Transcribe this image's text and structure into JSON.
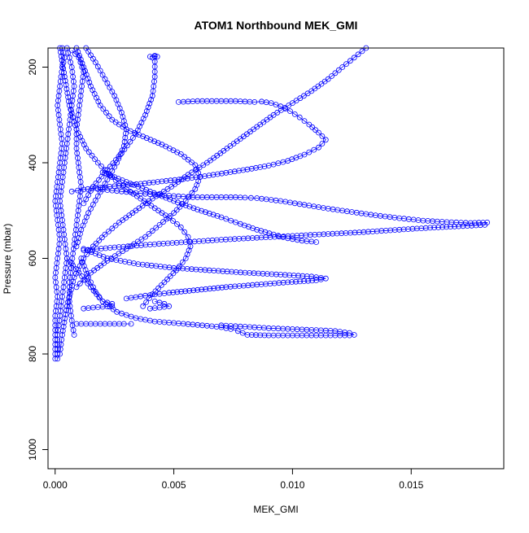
{
  "chart_data": {
    "type": "scatter",
    "title": "ATOM1 Northbound MEK_GMI",
    "xlabel": "MEK_GMI",
    "ylabel": "Pressure (mbar)",
    "xlim": [
      -0.0003,
      0.0189
    ],
    "ylim": [
      1040,
      160
    ],
    "y_reversed": true,
    "x_ticks": [
      0.0,
      0.005,
      0.01,
      0.015
    ],
    "x_tick_labels": [
      "0.000",
      "0.005",
      "0.010",
      "0.015"
    ],
    "y_ticks": [
      200,
      400,
      600,
      800,
      1000
    ],
    "y_tick_labels": [
      "200",
      "400",
      "600",
      "800",
      "1000"
    ],
    "grid": false,
    "legend": "none",
    "marker": "open-circle",
    "connect_points": true,
    "color": "#0000ff",
    "series": [
      {
        "points": [
          [
            0.0131,
            160
          ],
          [
            0.0126,
            180
          ],
          [
            0.0121,
            200
          ],
          [
            0.0115,
            225
          ],
          [
            0.0108,
            250
          ],
          [
            0.01,
            275
          ],
          [
            0.0092,
            300
          ],
          [
            0.0085,
            325
          ],
          [
            0.0078,
            350
          ],
          [
            0.0071,
            375
          ],
          [
            0.0064,
            400
          ],
          [
            0.0056,
            425
          ],
          [
            0.0049,
            450
          ],
          [
            0.0041,
            475
          ],
          [
            0.0034,
            500
          ],
          [
            0.0027,
            525
          ],
          [
            0.0021,
            550
          ],
          [
            0.0016,
            575
          ],
          [
            0.0012,
            600
          ],
          [
            0.0008,
            640
          ],
          [
            0.0005,
            700
          ],
          [
            0.0003,
            760
          ],
          [
            0.0002,
            800
          ],
          [
            0.0001,
            810
          ]
        ]
      },
      {
        "points": [
          [
            0.0002,
            160
          ],
          [
            0.0004,
            220
          ],
          [
            0.0006,
            280
          ],
          [
            0.0009,
            330
          ],
          [
            0.0013,
            370
          ],
          [
            0.0018,
            400
          ],
          [
            0.0024,
            430
          ],
          [
            0.003,
            455
          ],
          [
            0.0036,
            475
          ],
          [
            0.0042,
            495
          ],
          [
            0.0048,
            515
          ],
          [
            0.0053,
            535
          ],
          [
            0.0056,
            555
          ],
          [
            0.0057,
            575
          ],
          [
            0.0055,
            600
          ],
          [
            0.0051,
            625
          ],
          [
            0.0046,
            650
          ],
          [
            0.0041,
            675
          ],
          [
            0.0037,
            700
          ]
        ]
      },
      {
        "points": [
          [
            0.0052,
            273
          ],
          [
            0.0056,
            272
          ],
          [
            0.006,
            271
          ],
          [
            0.0064,
            271
          ],
          [
            0.0068,
            271
          ],
          [
            0.0072,
            271
          ],
          [
            0.0076,
            271
          ],
          [
            0.008,
            272
          ],
          [
            0.0084,
            273
          ],
          [
            0.0087,
            272
          ],
          [
            0.0091,
            275
          ],
          [
            0.0095,
            282
          ],
          [
            0.0099,
            292
          ],
          [
            0.0103,
            305
          ],
          [
            0.0107,
            320
          ],
          [
            0.0111,
            337
          ],
          [
            0.0114,
            352
          ],
          [
            0.0111,
            368
          ],
          [
            0.0105,
            383
          ],
          [
            0.0098,
            396
          ],
          [
            0.009,
            406
          ],
          [
            0.0081,
            414
          ],
          [
            0.0072,
            421
          ],
          [
            0.0063,
            428
          ],
          [
            0.0054,
            434
          ],
          [
            0.0045,
            439
          ],
          [
            0.0036,
            444
          ],
          [
            0.0027,
            448
          ],
          [
            0.0019,
            452
          ],
          [
            0.0012,
            456
          ],
          [
            0.0007,
            460
          ]
        ]
      },
      {
        "points": [
          [
            0.0013,
            158
          ],
          [
            0.0017,
            190
          ],
          [
            0.0021,
            225
          ],
          [
            0.0025,
            260
          ],
          [
            0.0028,
            295
          ],
          [
            0.003,
            330
          ],
          [
            0.0029,
            365
          ],
          [
            0.0026,
            400
          ],
          [
            0.0022,
            435
          ],
          [
            0.0018,
            470
          ],
          [
            0.0014,
            505
          ],
          [
            0.0011,
            540
          ],
          [
            0.0009,
            575
          ]
        ]
      },
      {
        "points": [
          [
            0.0018,
            455
          ],
          [
            0.0028,
            460
          ],
          [
            0.0038,
            465
          ],
          [
            0.0048,
            469
          ],
          [
            0.0058,
            472
          ],
          [
            0.0064,
            472
          ],
          [
            0.0068,
            472
          ],
          [
            0.0072,
            472
          ],
          [
            0.0076,
            472
          ],
          [
            0.008,
            473
          ],
          [
            0.0085,
            474
          ],
          [
            0.0095,
            480
          ],
          [
            0.0105,
            488
          ],
          [
            0.0115,
            496
          ],
          [
            0.0125,
            503
          ],
          [
            0.0135,
            510
          ],
          [
            0.0145,
            516
          ],
          [
            0.0155,
            521
          ],
          [
            0.0165,
            524
          ],
          [
            0.0175,
            526
          ],
          [
            0.0182,
            525
          ],
          [
            0.0181,
            530
          ],
          [
            0.017,
            533
          ],
          [
            0.0158,
            536
          ],
          [
            0.0145,
            540
          ],
          [
            0.013,
            545
          ],
          [
            0.0115,
            549
          ],
          [
            0.01,
            553
          ],
          [
            0.0085,
            557
          ],
          [
            0.007,
            561
          ],
          [
            0.0055,
            566
          ],
          [
            0.004,
            571
          ],
          [
            0.0025,
            577
          ],
          [
            0.0012,
            583
          ]
        ]
      },
      {
        "points": [
          [
            0.002,
            420
          ],
          [
            0.003,
            440
          ],
          [
            0.004,
            460
          ],
          [
            0.005,
            480
          ],
          [
            0.006,
            498
          ],
          [
            0.007,
            514
          ],
          [
            0.0078,
            528
          ],
          [
            0.0085,
            540
          ],
          [
            0.0092,
            550
          ],
          [
            0.0098,
            558
          ],
          [
            0.0104,
            563
          ],
          [
            0.0108,
            565
          ],
          [
            0.011,
            566
          ]
        ]
      },
      {
        "points": [
          [
            0.0012,
            580
          ],
          [
            0.0022,
            600
          ],
          [
            0.0035,
            612
          ],
          [
            0.005,
            620
          ],
          [
            0.0065,
            625
          ],
          [
            0.008,
            630
          ],
          [
            0.0095,
            634
          ],
          [
            0.0108,
            638
          ],
          [
            0.0114,
            642
          ],
          [
            0.011,
            646
          ],
          [
            0.0098,
            650
          ],
          [
            0.0085,
            655
          ],
          [
            0.0072,
            660
          ],
          [
            0.006,
            666
          ],
          [
            0.0048,
            672
          ],
          [
            0.0038,
            678
          ],
          [
            0.003,
            684
          ]
        ]
      },
      {
        "points": [
          [
            0.0005,
            600
          ],
          [
            0.001,
            630
          ],
          [
            0.0015,
            660
          ],
          [
            0.002,
            690
          ],
          [
            0.0026,
            712
          ],
          [
            0.0034,
            725
          ],
          [
            0.0042,
            732
          ],
          [
            0.0052,
            736
          ],
          [
            0.0062,
            740
          ],
          [
            0.007,
            744
          ],
          [
            0.0074,
            748
          ],
          [
            0.0077,
            752
          ],
          [
            0.0079,
            756
          ],
          [
            0.0081,
            760
          ],
          [
            0.009,
            761
          ],
          [
            0.01,
            761
          ],
          [
            0.011,
            761
          ],
          [
            0.0118,
            761
          ],
          [
            0.0124,
            761
          ],
          [
            0.0126,
            760
          ],
          [
            0.0124,
            756
          ],
          [
            0.0118,
            752
          ],
          [
            0.011,
            750
          ],
          [
            0.01,
            748
          ],
          [
            0.009,
            746
          ],
          [
            0.008,
            743
          ],
          [
            0.007,
            740
          ]
        ]
      },
      {
        "points": [
          [
            0.0009,
            737
          ],
          [
            0.0013,
            737
          ],
          [
            0.0017,
            737
          ],
          [
            0.0021,
            737
          ],
          [
            0.0025,
            737
          ],
          [
            0.0029,
            737
          ],
          [
            0.0032,
            737
          ]
        ]
      },
      {
        "points": [
          [
            0.0011,
            600
          ],
          [
            0.0014,
            640
          ],
          [
            0.0017,
            670
          ],
          [
            0.002,
            690
          ],
          [
            0.0024,
            695
          ],
          [
            0.0024,
            700
          ],
          [
            0.0018,
            702
          ],
          [
            0.0012,
            705
          ]
        ]
      },
      {
        "points": [
          [
            0.0042,
            178
          ],
          [
            0.0042,
            220
          ],
          [
            0.0041,
            260
          ],
          [
            0.0038,
            300
          ],
          [
            0.0034,
            340
          ],
          [
            0.0028,
            380
          ],
          [
            0.0022,
            415
          ],
          [
            0.0016,
            450
          ],
          [
            0.0012,
            485
          ]
        ]
      },
      {
        "points": [
          [
            0.004,
            178
          ],
          [
            0.0043,
            178
          ],
          [
            0.0042,
            176
          ],
          [
            0.0041,
            180
          ]
        ]
      },
      {
        "points": [
          [
            0.0042,
            690
          ],
          [
            0.0046,
            695
          ],
          [
            0.0048,
            700
          ],
          [
            0.0044,
            703
          ],
          [
            0.004,
            705
          ]
        ]
      },
      {
        "points": [
          [
            0.0009,
            160
          ],
          [
            0.0012,
            200
          ],
          [
            0.0015,
            240
          ],
          [
            0.0019,
            280
          ],
          [
            0.0024,
            310
          ],
          [
            0.003,
            330
          ],
          [
            0.0037,
            345
          ],
          [
            0.0045,
            362
          ],
          [
            0.0053,
            382
          ],
          [
            0.0059,
            405
          ],
          [
            0.0061,
            430
          ],
          [
            0.0059,
            455
          ],
          [
            0.0055,
            480
          ],
          [
            0.005,
            505
          ],
          [
            0.0044,
            530
          ],
          [
            0.0038,
            555
          ],
          [
            0.003,
            580
          ],
          [
            0.0022,
            605
          ],
          [
            0.0015,
            630
          ],
          [
            0.0009,
            660
          ]
        ]
      },
      {
        "points": [
          [
            0.0005,
            160
          ],
          [
            0.0007,
            200
          ],
          [
            0.0008,
            240
          ],
          [
            0.0007,
            280
          ],
          [
            0.0006,
            320
          ],
          [
            0.0005,
            360
          ],
          [
            0.0004,
            400
          ],
          [
            0.0003,
            440
          ],
          [
            0.0002,
            480
          ],
          [
            0.0003,
            520
          ],
          [
            0.0004,
            560
          ],
          [
            0.0005,
            600
          ],
          [
            0.0004,
            640
          ],
          [
            0.0003,
            680
          ],
          [
            0.0002,
            720
          ],
          [
            0.0001,
            760
          ],
          [
            0.0001,
            800
          ]
        ]
      },
      {
        "points": [
          [
            0.0003,
            160
          ],
          [
            0.0004,
            180
          ],
          [
            0.0003,
            200
          ],
          [
            0.0002,
            240
          ],
          [
            0.0001,
            280
          ],
          [
            0.0002,
            320
          ],
          [
            0.0003,
            360
          ],
          [
            0.0002,
            400
          ],
          [
            0.0001,
            440
          ],
          [
            0.0,
            480
          ],
          [
            0.0001,
            520
          ],
          [
            0.0002,
            560
          ],
          [
            0.0001,
            600
          ],
          [
            0.0,
            640
          ],
          [
            0.0001,
            680
          ],
          [
            0.0,
            720
          ],
          [
            0.0,
            760
          ],
          [
            0.0,
            800
          ],
          [
            0.0,
            810
          ]
        ]
      },
      {
        "points": [
          [
            0.0007,
            165
          ],
          [
            0.001,
            180
          ],
          [
            0.0012,
            210
          ],
          [
            0.0011,
            250
          ],
          [
            0.001,
            290
          ],
          [
            0.0009,
            330
          ],
          [
            0.0009,
            370
          ],
          [
            0.001,
            410
          ],
          [
            0.0011,
            450
          ],
          [
            0.001,
            490
          ],
          [
            0.0009,
            530
          ],
          [
            0.0008,
            570
          ],
          [
            0.0007,
            610
          ],
          [
            0.0006,
            650
          ],
          [
            0.0006,
            690
          ],
          [
            0.0007,
            730
          ],
          [
            0.0008,
            760
          ]
        ]
      }
    ]
  }
}
